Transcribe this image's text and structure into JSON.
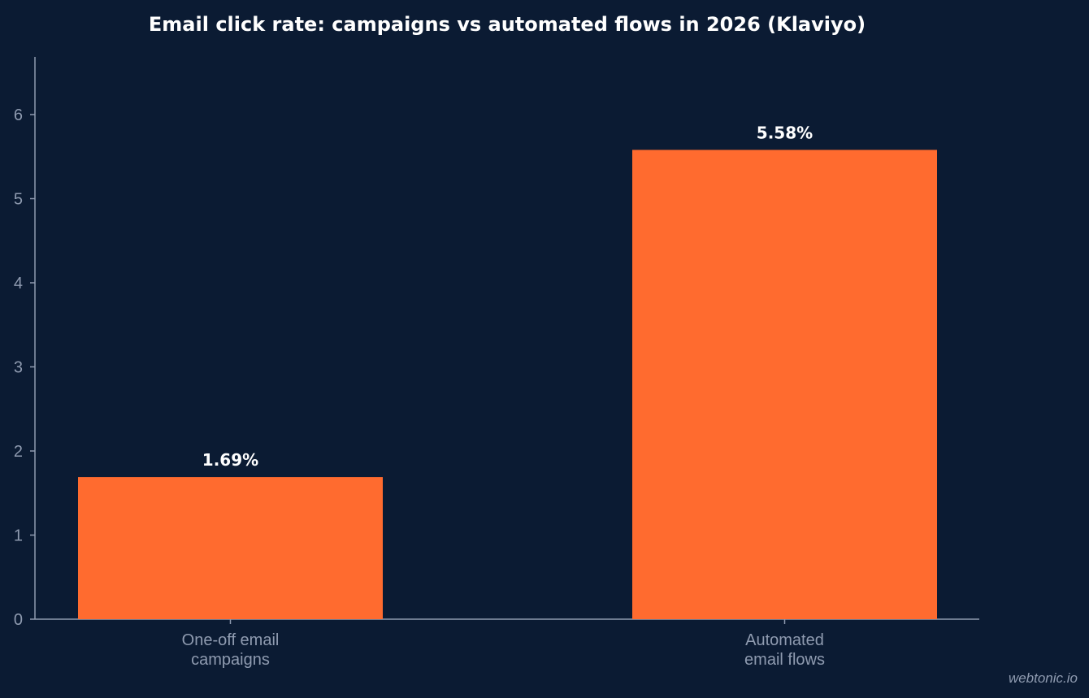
{
  "colors": {
    "background": "#0b1b33",
    "bar": "#ff6b2f",
    "axis": "#8f9bb0",
    "title": "#ffffff",
    "data_label": "#ffffff"
  },
  "watermark": "webtonic.io",
  "chart_data": {
    "type": "bar",
    "title": "Email click rate: campaigns vs automated flows in 2026 (Klaviyo)",
    "xlabel": "",
    "ylabel": "",
    "categories": [
      [
        "One-off email",
        "campaigns"
      ],
      [
        "Automated",
        "email flows"
      ]
    ],
    "values": [
      1.69,
      5.58
    ],
    "data_labels": [
      "1.69%",
      "5.58%"
    ],
    "yticks": [
      0,
      1,
      2,
      3,
      4,
      5,
      6
    ],
    "ylim": [
      0,
      6.7
    ],
    "grid": false,
    "legend": "none"
  }
}
